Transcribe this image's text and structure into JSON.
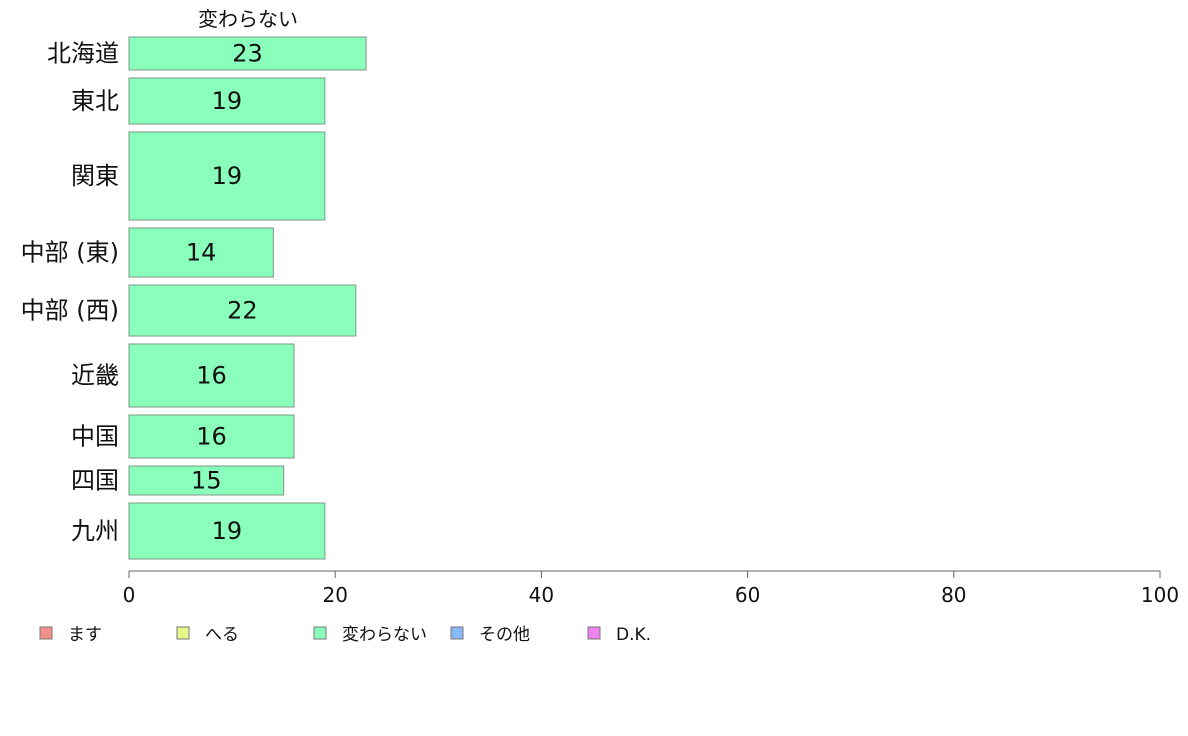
{
  "chart_data": {
    "type": "bar",
    "orientation": "horizontal",
    "stacked": true,
    "series_title": "変わらない",
    "categories": [
      "北海道",
      "東北",
      "関東",
      "中部 (東)",
      "中部 (西)",
      "近畿",
      "中国",
      "四国",
      "九州"
    ],
    "series": [
      {
        "name": "変わらない",
        "values": [
          23,
          19,
          19,
          14,
          22,
          16,
          16,
          15,
          19
        ]
      }
    ],
    "data_labels": [
      "23",
      "19",
      "19",
      "14",
      "22",
      "16",
      "16",
      "15",
      "19"
    ],
    "xlim": [
      0,
      100
    ],
    "xticks": [
      0,
      20,
      40,
      60,
      80,
      100
    ],
    "grid": false,
    "legend_position": "bottom-left",
    "legend": [
      {
        "label": "ます",
        "color": "#f4908a"
      },
      {
        "label": "へる",
        "color": "#e5f88a"
      },
      {
        "label": "変わらない",
        "color": "#8affbb"
      },
      {
        "label": "その他",
        "color": "#8ab9f8"
      },
      {
        "label": "D.K.",
        "color": "#ee82ee"
      }
    ],
    "bar_color": "#8affbb"
  }
}
